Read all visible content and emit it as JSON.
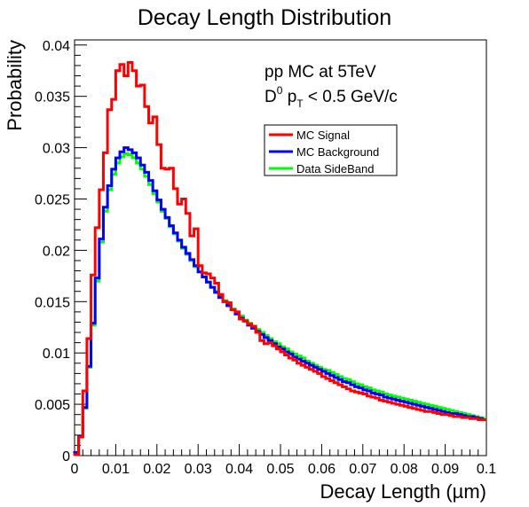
{
  "chart_data": {
    "type": "line",
    "title": "Decay Length Distribution",
    "xlabel": "Decay Length (µm)",
    "ylabel": "Probability",
    "xlim": [
      0,
      0.1
    ],
    "ylim": [
      0,
      0.0405
    ],
    "x_ticks": [
      "0",
      "0.01",
      "0.02",
      "0.03",
      "0.04",
      "0.05",
      "0.06",
      "0.07",
      "0.08",
      "0.09",
      "0.1"
    ],
    "y_ticks": [
      "0",
      "0.005",
      "0.01",
      "0.015",
      "0.02",
      "0.025",
      "0.03",
      "0.035",
      "0.04"
    ],
    "annotation": {
      "line1": "pp MC at 5TeV",
      "line2_main": "D",
      "line2_sup": "0",
      "line2_p": " p",
      "line2_sub": "T",
      "line2_rest": " < 0.5 GeV/c"
    },
    "legend_position": "upper-right",
    "bin_width": 0.001,
    "series": [
      {
        "name": "MC Signal",
        "color": "#ff0000",
        "values": [
          0.0001,
          0.0018,
          0.0063,
          0.0114,
          0.0176,
          0.0222,
          0.0259,
          0.0295,
          0.0337,
          0.0347,
          0.0375,
          0.0381,
          0.037,
          0.0383,
          0.0375,
          0.036,
          0.0361,
          0.034,
          0.0324,
          0.033,
          0.0303,
          0.028,
          0.0279,
          0.028,
          0.026,
          0.0245,
          0.025,
          0.0236,
          0.0214,
          0.0221,
          0.0185,
          0.0178,
          0.0177,
          0.0173,
          0.0168,
          0.0157,
          0.015,
          0.0149,
          0.0142,
          0.014,
          0.0133,
          0.0131,
          0.0128,
          0.0126,
          0.012,
          0.0112,
          0.0109,
          0.011,
          0.0107,
          0.0104,
          0.0101,
          0.0098,
          0.0095,
          0.0093,
          0.009,
          0.0088,
          0.0086,
          0.0084,
          0.0082,
          0.008,
          0.0077,
          0.0075,
          0.0073,
          0.0071,
          0.0069,
          0.0067,
          0.0065,
          0.0063,
          0.0062,
          0.0061,
          0.006,
          0.0058,
          0.0057,
          0.0056,
          0.0054,
          0.0053,
          0.0052,
          0.0051,
          0.005,
          0.0049,
          0.0048,
          0.0047,
          0.0046,
          0.0045,
          0.0044,
          0.0043,
          0.0043,
          0.0042,
          0.0041,
          0.004,
          0.004,
          0.0039,
          0.0038,
          0.0038,
          0.0037,
          0.0037,
          0.0036,
          0.0036,
          0.0035,
          0.0035
        ]
      },
      {
        "name": "MC Background",
        "color": "#0000ff",
        "values": [
          0.0003,
          0.0019,
          0.0047,
          0.0087,
          0.0129,
          0.0173,
          0.0211,
          0.0242,
          0.0263,
          0.0279,
          0.029,
          0.0296,
          0.03,
          0.0298,
          0.0295,
          0.029,
          0.0283,
          0.0276,
          0.0268,
          0.0258,
          0.0249,
          0.024,
          0.0232,
          0.0224,
          0.0217,
          0.021,
          0.0203,
          0.0197,
          0.0191,
          0.0185,
          0.0179,
          0.0174,
          0.0169,
          0.0164,
          0.0159,
          0.0154,
          0.015,
          0.0146,
          0.0142,
          0.0138,
          0.0134,
          0.0131,
          0.0127,
          0.0124,
          0.0121,
          0.0118,
          0.0115,
          0.0112,
          0.0109,
          0.0106,
          0.0104,
          0.0101,
          0.0099,
          0.0096,
          0.0094,
          0.0092,
          0.009,
          0.0088,
          0.0086,
          0.0084,
          0.0082,
          0.008,
          0.0078,
          0.0076,
          0.0074,
          0.0072,
          0.0071,
          0.0069,
          0.0067,
          0.0066,
          0.0064,
          0.0063,
          0.0061,
          0.006,
          0.0059,
          0.0057,
          0.0056,
          0.0055,
          0.0054,
          0.0053,
          0.0052,
          0.0051,
          0.005,
          0.0049,
          0.0048,
          0.0047,
          0.0046,
          0.0045,
          0.0044,
          0.0043,
          0.0042,
          0.0041,
          0.0041,
          0.004,
          0.0039,
          0.0038,
          0.0038,
          0.0037,
          0.0036,
          0.0035
        ]
      },
      {
        "name": "Data SideBand",
        "color": "#00ff00",
        "values": [
          0.0003,
          0.0019,
          0.0046,
          0.0086,
          0.0127,
          0.017,
          0.0208,
          0.0238,
          0.0259,
          0.0274,
          0.0285,
          0.0291,
          0.0294,
          0.0293,
          0.029,
          0.0285,
          0.0279,
          0.0272,
          0.0264,
          0.0255,
          0.0247,
          0.0238,
          0.0231,
          0.0223,
          0.0216,
          0.0209,
          0.0202,
          0.0196,
          0.019,
          0.0184,
          0.0179,
          0.0174,
          0.0169,
          0.0164,
          0.016,
          0.0155,
          0.0151,
          0.0147,
          0.0143,
          0.0139,
          0.0136,
          0.0132,
          0.0129,
          0.0126,
          0.0123,
          0.012,
          0.0117,
          0.0114,
          0.0111,
          0.0109,
          0.0106,
          0.0104,
          0.0101,
          0.0099,
          0.0097,
          0.0095,
          0.0092,
          0.009,
          0.0088,
          0.0086,
          0.0084,
          0.0083,
          0.0081,
          0.0079,
          0.0077,
          0.0075,
          0.0074,
          0.0072,
          0.007,
          0.0069,
          0.0067,
          0.0066,
          0.0064,
          0.0063,
          0.0062,
          0.006,
          0.0059,
          0.0058,
          0.0057,
          0.0056,
          0.0055,
          0.0054,
          0.0053,
          0.0052,
          0.0051,
          0.005,
          0.0049,
          0.0048,
          0.0047,
          0.0046,
          0.0045,
          0.0044,
          0.0043,
          0.0042,
          0.0041,
          0.004,
          0.0039,
          0.0038,
          0.0037,
          0.0036
        ]
      }
    ]
  }
}
